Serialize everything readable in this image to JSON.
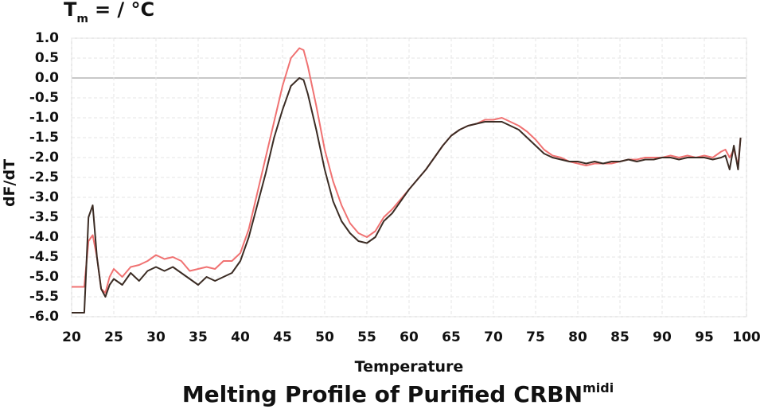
{
  "chart_data": {
    "type": "line",
    "top_label": {
      "main": "T",
      "sub": "m",
      "rest": "= / °C"
    },
    "title": "Melting Profile of Purified CRBN",
    "title_superscript": "midi",
    "x_label": "Temperature",
    "y_label": "dF/dT",
    "xlim": [
      20,
      100
    ],
    "ylim": [
      -6,
      1
    ],
    "xticks": [
      20,
      25,
      30,
      35,
      40,
      45,
      50,
      55,
      60,
      65,
      70,
      75,
      80,
      85,
      90,
      95,
      100
    ],
    "yticks": [
      {
        "value": 1,
        "label": "1.0"
      },
      0.5,
      {
        "value": 0,
        "label": "0.0"
      },
      -0.5,
      {
        "value": -1,
        "label": "-1.0"
      },
      -1.5,
      {
        "value": -2,
        "label": "-2.0"
      },
      -2.5,
      {
        "value": -3,
        "label": "-3.0"
      },
      -3.5,
      {
        "value": -4,
        "label": "-4.0"
      },
      -4.5,
      {
        "value": -5,
        "label": "-5.0"
      },
      -5.5,
      {
        "value": -6,
        "label": "-6.0"
      }
    ],
    "grid": true,
    "x": [
      20,
      21,
      21.5,
      22,
      22.5,
      23,
      23.5,
      24,
      24.5,
      25,
      26,
      27,
      28,
      29,
      30,
      31,
      32,
      33,
      34,
      35,
      36,
      37,
      38,
      39,
      40,
      41,
      42,
      43,
      44,
      45,
      46,
      47,
      47.5,
      48,
      49,
      50,
      51,
      52,
      53,
      54,
      55,
      56,
      57,
      58,
      59,
      60,
      61,
      62,
      63,
      64,
      65,
      66,
      67,
      68,
      69,
      70,
      71,
      72,
      73,
      74,
      75,
      76,
      77,
      78,
      79,
      80,
      81,
      82,
      83,
      84,
      85,
      86,
      87,
      88,
      89,
      90,
      91,
      92,
      93,
      94,
      95,
      96,
      97,
      97.5,
      98,
      98.5,
      99,
      99.3
    ],
    "series": [
      {
        "color": "#f07272",
        "values": [
          -5.25,
          -5.25,
          -5.25,
          -4.1,
          -3.95,
          -4.5,
          -5.3,
          -5.4,
          -5.0,
          -4.8,
          -5.0,
          -4.75,
          -4.7,
          -4.6,
          -4.45,
          -4.55,
          -4.5,
          -4.6,
          -4.85,
          -4.8,
          -4.75,
          -4.8,
          -4.6,
          -4.6,
          -4.4,
          -3.8,
          -2.9,
          -2.0,
          -1.1,
          -0.2,
          0.5,
          0.75,
          0.7,
          0.3,
          -0.7,
          -1.8,
          -2.6,
          -3.2,
          -3.65,
          -3.9,
          -4.0,
          -3.85,
          -3.5,
          -3.3,
          -3.05,
          -2.8,
          -2.55,
          -2.3,
          -2.0,
          -1.7,
          -1.45,
          -1.3,
          -1.2,
          -1.15,
          -1.05,
          -1.05,
          -1.0,
          -1.1,
          -1.2,
          -1.35,
          -1.55,
          -1.8,
          -1.95,
          -2.0,
          -2.1,
          -2.15,
          -2.2,
          -2.15,
          -2.15,
          -2.15,
          -2.1,
          -2.05,
          -2.05,
          -2.0,
          -2.0,
          -2.0,
          -1.95,
          -2.0,
          -1.95,
          -2.0,
          -1.95,
          -2.0,
          -1.85,
          -1.8,
          -2.0,
          -1.8,
          -2.2,
          -1.5
        ]
      },
      {
        "color": "#3b2c24",
        "values": [
          -5.9,
          -5.9,
          -5.9,
          -3.5,
          -3.2,
          -4.5,
          -5.3,
          -5.5,
          -5.2,
          -5.05,
          -5.2,
          -4.9,
          -5.1,
          -4.85,
          -4.75,
          -4.85,
          -4.75,
          -4.9,
          -5.05,
          -5.2,
          -5.0,
          -5.1,
          -5.0,
          -4.9,
          -4.6,
          -4.0,
          -3.2,
          -2.4,
          -1.5,
          -0.8,
          -0.2,
          0.0,
          -0.05,
          -0.4,
          -1.3,
          -2.3,
          -3.1,
          -3.6,
          -3.9,
          -4.1,
          -4.15,
          -4.0,
          -3.6,
          -3.4,
          -3.1,
          -2.8,
          -2.55,
          -2.3,
          -2.0,
          -1.7,
          -1.45,
          -1.3,
          -1.2,
          -1.15,
          -1.1,
          -1.1,
          -1.1,
          -1.2,
          -1.3,
          -1.5,
          -1.7,
          -1.9,
          -2.0,
          -2.05,
          -2.1,
          -2.1,
          -2.15,
          -2.1,
          -2.15,
          -2.1,
          -2.1,
          -2.05,
          -2.1,
          -2.05,
          -2.05,
          -2.0,
          -2.0,
          -2.05,
          -2.0,
          -2.0,
          -2.0,
          -2.05,
          -2.0,
          -1.95,
          -2.3,
          -1.7,
          -2.3,
          -1.5
        ]
      }
    ]
  }
}
